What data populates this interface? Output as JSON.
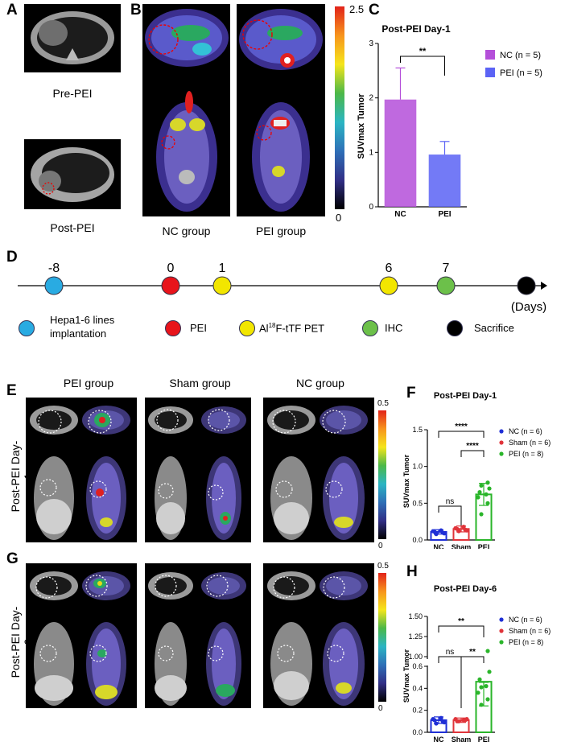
{
  "panel_labels": {
    "A": "A",
    "B": "B",
    "C": "C",
    "D": "D",
    "E": "E",
    "F": "F",
    "G": "G",
    "H": "H"
  },
  "panel_a": {
    "top_caption": "Pre-PEI",
    "bottom_caption": "Post-PEI"
  },
  "panel_b": {
    "captions": [
      "NC group",
      "PEI group"
    ],
    "colorbar_max": "2.5",
    "colorbar_min": "0"
  },
  "panel_d": {
    "day_labels": [
      "-8",
      "0",
      "1",
      "6",
      "7"
    ],
    "axis_unit": "(Days)",
    "legend": [
      {
        "label": "Hepa1-6 lines implantation",
        "color": "#29abe2"
      },
      {
        "label": "PEI",
        "color": "#e8141b"
      },
      {
        "label": "Al18F-tTF PET",
        "color": "#f2e600"
      },
      {
        "label": "IHC",
        "color": "#6cc04a"
      },
      {
        "label": "Sacrifice",
        "color": "#000000"
      }
    ],
    "tracer_label": {
      "pre": "Al",
      "sup": "18",
      "post": "F-tTF PET"
    }
  },
  "panel_e": {
    "headers": [
      "PEI group",
      "Sham group",
      "NC group"
    ],
    "row_label": "Post-PEI Day-1",
    "colorbar_max": "0.5",
    "colorbar_min": "0"
  },
  "panel_g": {
    "row_label": "Post-PEI Day-6",
    "colorbar_max": "0.5",
    "colorbar_min": "0"
  },
  "chart_data": [
    {
      "type": "bar",
      "title": "Post-PEI  Day-1",
      "ylabel": "SUVmax Tumor",
      "ylim": [
        0,
        3
      ],
      "yticks": [
        "0",
        "1",
        "2",
        "3"
      ],
      "categories": [
        "NC",
        "PEI"
      ],
      "values": [
        1.97,
        0.96
      ],
      "errors": [
        0.58,
        0.24
      ],
      "colors": [
        "#b44fd9",
        "#5b63f5"
      ],
      "legend": [
        "NC (n = 5)",
        "PEI (n = 5)"
      ],
      "sig": [
        {
          "text": "**"
        }
      ]
    },
    {
      "type": "bar",
      "title": "Post-PEI  Day-1",
      "ylabel": "SUVmax Tumor",
      "ylim": [
        0,
        1.5
      ],
      "yticks": [
        "0.0",
        "0.5",
        "1.0",
        "1.5"
      ],
      "categories": [
        "NC",
        "Sham",
        "PEI"
      ],
      "values": [
        0.11,
        0.15,
        0.62
      ],
      "errors": [
        0.03,
        0.04,
        0.15
      ],
      "colors": [
        "#1f2fd6",
        "#e0343a",
        "#2ab52a"
      ],
      "points": [
        [
          0.08,
          0.1,
          0.12,
          0.13,
          0.11,
          0.09
        ],
        [
          0.12,
          0.14,
          0.16,
          0.18,
          0.15,
          0.13
        ],
        [
          0.35,
          0.5,
          0.58,
          0.62,
          0.65,
          0.7,
          0.74,
          0.78
        ]
      ],
      "legend": [
        "NC (n = 6)",
        "Sham (n = 6)",
        "PEI (n = 8)"
      ],
      "sig": [
        {
          "text": "****"
        },
        {
          "text": "****"
        },
        {
          "text": "ns"
        }
      ]
    },
    {
      "type": "bar",
      "title": "Post-PEI  Day-6",
      "ylabel": "SUVmax Tumor",
      "ylim": [
        0,
        1.5
      ],
      "yticks": [
        "0.0",
        "0.2",
        "0.4",
        "0.6",
        "1.00",
        "1.25",
        "1.50"
      ],
      "categories": [
        "NC",
        "Sham",
        "PEI"
      ],
      "values": [
        0.11,
        0.11,
        0.46
      ],
      "errors": [
        0.03,
        0.02,
        0.22
      ],
      "colors": [
        "#1f2fd6",
        "#e0343a",
        "#2ab52a"
      ],
      "points": [
        [
          0.08,
          0.1,
          0.12,
          0.13,
          0.11,
          0.09
        ],
        [
          0.1,
          0.11,
          0.12,
          0.11,
          0.1,
          0.12
        ],
        [
          0.25,
          0.3,
          0.36,
          0.42,
          0.48,
          0.55,
          0.62,
          1.07
        ]
      ],
      "legend": [
        "NC (n = 6)",
        "Sham (n = 6)",
        "PEI (n = 8)"
      ],
      "sig": [
        {
          "text": "**"
        },
        {
          "text": "**"
        },
        {
          "text": "ns"
        }
      ]
    }
  ]
}
